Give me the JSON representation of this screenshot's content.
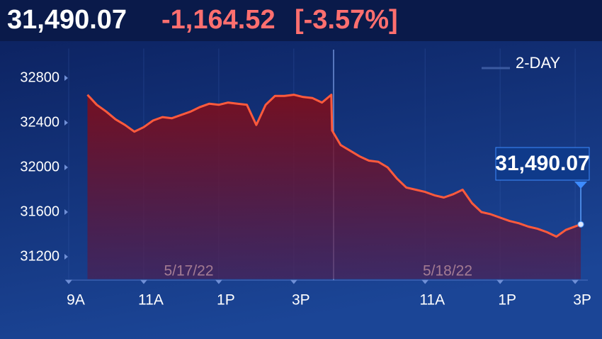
{
  "chart_data": {
    "type": "line",
    "last_value": "31,490.07",
    "change": "-1,164.52",
    "change_percent": "[-3.57%]",
    "range_label": "2-DAY",
    "callout": "31,490.07",
    "color": "#ff5a3c",
    "x": [
      0.5,
      0.75,
      1,
      1.25,
      1.5,
      1.75,
      2,
      2.25,
      2.5,
      2.75,
      3,
      3.25,
      3.5,
      3.75,
      4,
      4.25,
      4.5,
      4.75,
      5,
      5.25,
      5.5,
      5.75,
      6,
      6.25,
      6.5,
      6.75,
      7,
      7.02,
      7.25,
      7.5,
      7.75,
      8,
      8.25,
      8.5,
      8.75,
      9,
      9.25,
      9.5,
      9.75,
      10,
      10.25,
      10.5,
      10.75,
      11,
      11.25,
      11.5,
      11.75,
      12,
      12.25,
      12.5,
      12.75,
      13,
      13.25,
      13.65
    ],
    "values": [
      32650,
      32560,
      32500,
      32430,
      32380,
      32320,
      32360,
      32420,
      32450,
      32440,
      32470,
      32500,
      32540,
      32570,
      32560,
      32580,
      32570,
      32560,
      32380,
      32560,
      32640,
      32640,
      32650,
      32630,
      32620,
      32580,
      32650,
      32330,
      32200,
      32150,
      32100,
      32060,
      32050,
      32000,
      31900,
      31820,
      31800,
      31780,
      31750,
      31730,
      31760,
      31800,
      31680,
      31600,
      31580,
      31550,
      31520,
      31500,
      31470,
      31450,
      31420,
      31380,
      31440,
      31490.07
    ],
    "xlim": [
      0,
      13.8
    ],
    "xticks": [
      {
        "value": 0,
        "label": "9A"
      },
      {
        "value": 2,
        "label": "11A"
      },
      {
        "value": 4,
        "label": "1P"
      },
      {
        "value": 6,
        "label": "3P"
      },
      {
        "value": 9.5,
        "label": "11A"
      },
      {
        "value": 11.5,
        "label": "1P"
      },
      {
        "value": 13.5,
        "label": "3P"
      }
    ],
    "ylim": [
      31000,
      33000
    ],
    "yticks": [
      31200,
      31600,
      32000,
      32400,
      32800
    ],
    "grid": "x",
    "annotations": [
      {
        "x": 3.2,
        "text": "5/17/22"
      },
      {
        "x": 10.1,
        "text": "5/18/22"
      }
    ]
  }
}
